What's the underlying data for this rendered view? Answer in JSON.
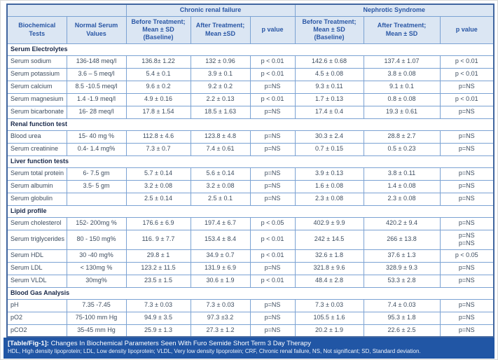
{
  "colors": {
    "header_bg": "#dbe6f3",
    "header_text": "#2a57a5",
    "inner_border": "#7ba2d3",
    "outer_border": "#40659f",
    "section_text": "#19294a",
    "body_text": "#3d4d60",
    "caption_bg": "#2156a5",
    "caption_text": "#ffffff"
  },
  "header": {
    "groups": [
      {
        "label": "Chronic renal failure"
      },
      {
        "label": "Nephrotic Syndrome"
      }
    ],
    "columns": {
      "biochemical_tests": "Biochemical\nTests",
      "normal_values": "Normal Serum\nValues",
      "crf_before": "Before Treatment;\nMean ± SD\n(Baseline)",
      "crf_after": "After Treatment;\nMean ±SD",
      "crf_p": "p value",
      "ns_before": "Before Treatment;\nMean ± SD\n(Baseline)",
      "ns_after": "After Treatment;\nMean ± SD",
      "ns_p": "p value"
    }
  },
  "sections": [
    {
      "title": "Serum Electrolytes",
      "rows": [
        {
          "test": "Serum sodium",
          "normal": "136-148 meq/l",
          "crf_before": "136.8± 1.22",
          "crf_after": "132 ± 0.96",
          "crf_p": "p < 0.01",
          "ns_before": "142.6 ± 0.68",
          "ns_after": "137.4 ± 1.07",
          "ns_p": "p < 0.01"
        },
        {
          "test": "Serum potassium",
          "normal": "3.6 – 5 meq/l",
          "crf_before": "5.4 ± 0.1",
          "crf_after": "3.9 ± 0.1",
          "crf_p": "p < 0.01",
          "ns_before": "4.5 ± 0.08",
          "ns_after": "3.8 ± 0.08",
          "ns_p": "p < 0.01"
        },
        {
          "test": "Serum calcium",
          "normal": "8.5 -10.5 meq/l",
          "crf_before": "9.6 ± 0.2",
          "crf_after": "9.2 ± 0.2",
          "crf_p": "p=NS",
          "ns_before": "9.3 ± 0.11",
          "ns_after": "9.1 ± 0.1",
          "ns_p": "p=NS"
        },
        {
          "test": "Serum magnesium",
          "normal": "1.4 -1.9 meq/l",
          "crf_before": "4.9 ± 0.16",
          "crf_after": "2.2 ± 0.13",
          "crf_p": "p < 0.01",
          "ns_before": "1.7 ± 0.13",
          "ns_after": "0.8 ± 0.08",
          "ns_p": "p < 0.01"
        },
        {
          "test": "Serum bicarbonate",
          "normal": "16- 28 meq/l",
          "crf_before": "17.8 ± 1.54",
          "crf_after": "18.5 ± 1.63",
          "crf_p": "p=NS",
          "ns_before": "17.4 ± 0.4",
          "ns_after": "19.3 ± 0.61",
          "ns_p": "p=NS"
        }
      ]
    },
    {
      "title": "Renal function test",
      "rows": [
        {
          "test": "Blood urea",
          "normal": "15- 40 mg %",
          "crf_before": "112.8 ± 4.6",
          "crf_after": "123.8 ± 4.8",
          "crf_p": "p=NS",
          "ns_before": "30.3 ± 2.4",
          "ns_after": "28.8 ± 2.7",
          "ns_p": "p=NS"
        },
        {
          "test": "Serum creatinine",
          "normal": "0.4- 1.4 mg%",
          "crf_before": "7.3 ± 0.7",
          "crf_after": "7.4 ± 0.61",
          "crf_p": "p=NS",
          "ns_before": "0.7 ± 0.15",
          "ns_after": "0.5 ± 0.23",
          "ns_p": "p=NS"
        }
      ]
    },
    {
      "title": "Liver function tests",
      "rows": [
        {
          "test": "Serum total protein",
          "normal": "6- 7.5 gm",
          "crf_before": "5.7 ± 0.14",
          "crf_after": "5.6 ± 0.14",
          "crf_p": "p=NS",
          "ns_before": "3.9 ± 0.13",
          "ns_after": "3.8 ± 0.11",
          "ns_p": "p=NS"
        },
        {
          "test": "Serum albumin",
          "normal": "3.5- 5 gm",
          "crf_before": "3.2 ± 0.08",
          "crf_after": "3.2 ± 0.08",
          "crf_p": "p=NS",
          "ns_before": "1.6 ± 0.08",
          "ns_after": "1.4 ± 0.08",
          "ns_p": "p=NS"
        },
        {
          "test": "Serum globulin",
          "normal": "",
          "crf_before": "2.5 ± 0.14",
          "crf_after": "2.5 ± 0.1",
          "crf_p": "p=NS",
          "ns_before": "2.3 ± 0.08",
          "ns_after": "2.3 ± 0.08",
          "ns_p": "p=NS"
        }
      ]
    },
    {
      "title": "Lipid profile",
      "rows": [
        {
          "test": "Serum cholesterol",
          "normal": "152- 200mg %",
          "crf_before": "176.6 ± 6.9",
          "crf_after": "197.4 ± 6.7",
          "crf_p": "p < 0.05",
          "ns_before": "402.9 ± 9.9",
          "ns_after": "420.2 ± 9.4",
          "ns_p": "p=NS"
        },
        {
          "test": "Serum triglycerides",
          "normal": "80 - 150 mg%",
          "crf_before": "116. 9 ± 7.7",
          "crf_after": "153.4 ± 8.4",
          "crf_p": "p < 0.01",
          "ns_before": "242 ± 14.5",
          "ns_after": "266 ± 13.8",
          "ns_p": "p=NS\np=NS"
        },
        {
          "test": "Serum HDL",
          "normal": "30 -40 mg%",
          "crf_before": "29.8 ± 1",
          "crf_after": "34.9 ± 0.7",
          "crf_p": "p < 0.01",
          "ns_before": "32.6 ± 1.8",
          "ns_after": "37.6 ± 1.3",
          "ns_p": "p < 0.05"
        },
        {
          "test": "Serum LDL",
          "normal": "< 130mg %",
          "crf_before": "123.2 ± 11.5",
          "crf_after": "131.9 ± 6.9",
          "crf_p": "p=NS",
          "ns_before": "321.8 ± 9.6",
          "ns_after": "328.9 ± 9.3",
          "ns_p": "p=NS"
        },
        {
          "test": "Serum VLDL",
          "normal": "30mg%",
          "crf_before": "23.5 ± 1.5",
          "crf_after": "30.6 ± 1.9",
          "crf_p": "p < 0.01",
          "ns_before": "48.4 ± 2.8",
          "ns_after": "53.3 ± 2.8",
          "ns_p": "p=NS"
        }
      ]
    },
    {
      "title": "Blood Gas Analysis",
      "rows": [
        {
          "test": "pH",
          "normal": "7.35 -7.45",
          "crf_before": "7.3 ± 0.03",
          "crf_after": "7.3 ± 0.03",
          "crf_p": "p=NS",
          "ns_before": "7.3 ± 0.03",
          "ns_after": "7.4 ± 0.03",
          "ns_p": "p=NS"
        },
        {
          "test": "pO2",
          "normal": "75-100 mm Hg",
          "crf_before": "94.9 ± 3.5",
          "crf_after": "97.3 ±3.2",
          "crf_p": "p=NS",
          "ns_before": "105.5 ± 1.6",
          "ns_after": "95.3 ± 1.8",
          "ns_p": "p=NS"
        },
        {
          "test": "pCO2",
          "normal": "35-45 mm Hg",
          "crf_before": "25.9 ± 1.3",
          "crf_after": "27.3 ± 1.2",
          "crf_p": "p=NS",
          "ns_before": "20.2 ± 1.9",
          "ns_after": "22.6 ± 2.5",
          "ns_p": "p=NS"
        }
      ]
    }
  ],
  "caption": {
    "tag": "[Table/Fig-1]:",
    "title": " Changes In Biochemical Parameters Seen With Furo Semide Short Term 3 Day Therapy",
    "abbreviations": "HDL, High density lipoprotein; LDL, Low density lipoprotein; VLDL, Very low density lipoprotein; CRF, Chronic renal failure, NS, Not significant; SD, Standard deviation."
  }
}
